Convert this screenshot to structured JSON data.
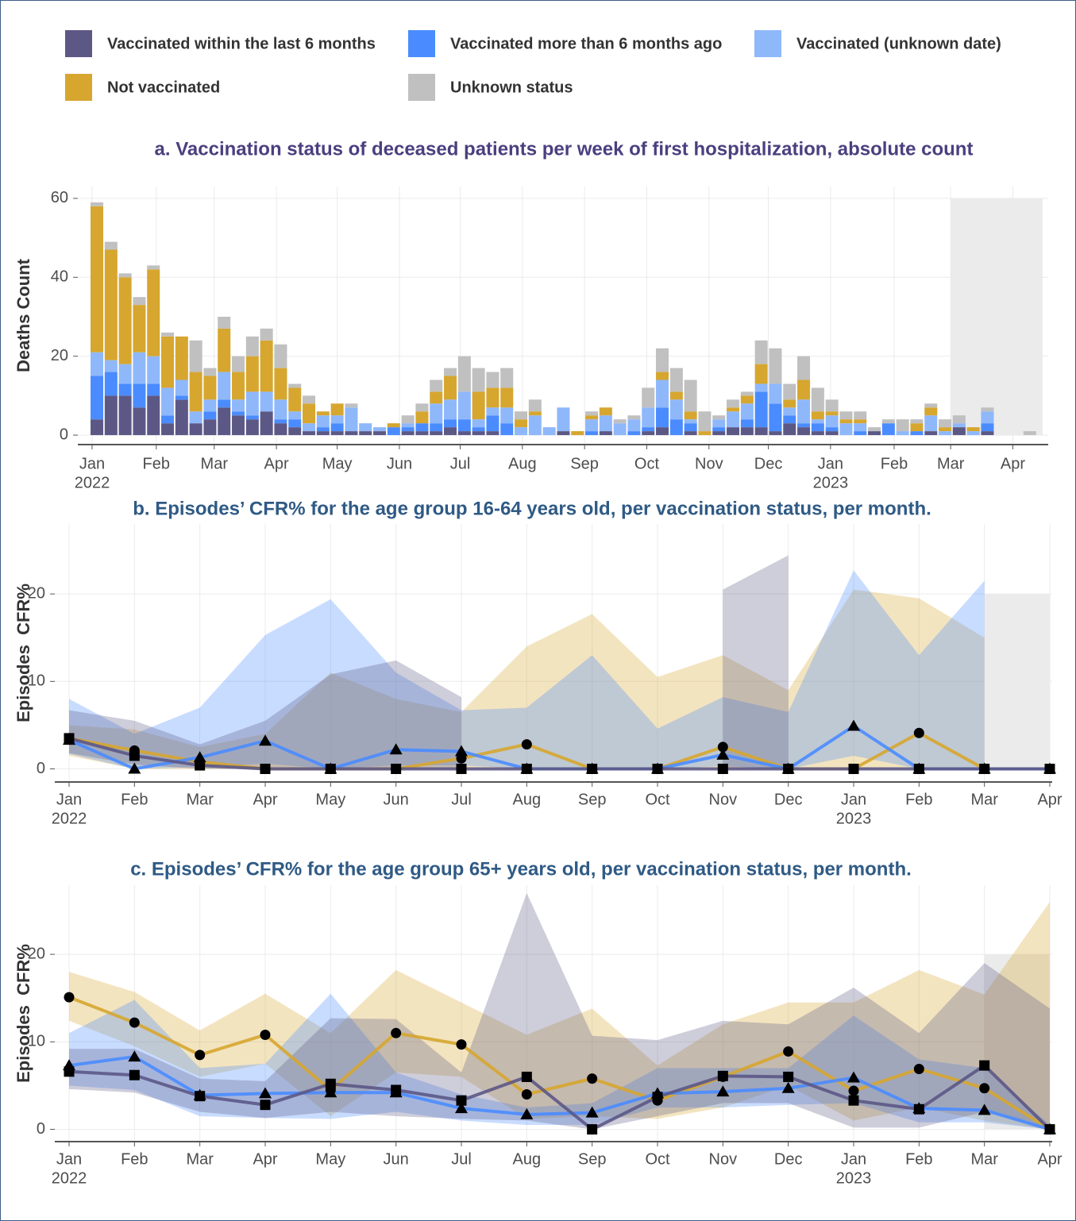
{
  "chart_data": [
    {
      "type": "bar",
      "stacked": true,
      "title": "a. Vaccination status of deceased patients per week of first hospitalization, absolute count",
      "y_label": "Deaths Count",
      "x": [
        0,
        1,
        2,
        3,
        4,
        5,
        6,
        7,
        8,
        9,
        10,
        11,
        12,
        13,
        14,
        15,
        16,
        17,
        18,
        19,
        20,
        21,
        22,
        23,
        24,
        25,
        26,
        27,
        28,
        29,
        30,
        31,
        32,
        33,
        34,
        35,
        36,
        37,
        38,
        39,
        40,
        41,
        42,
        43,
        44,
        45,
        46,
        47,
        48,
        49,
        50,
        51,
        52,
        53,
        54,
        55,
        56,
        57,
        58,
        59,
        60,
        61,
        62,
        63,
        64,
        65,
        66
      ],
      "xlim": [
        -1.35,
        67.3
      ],
      "xticks": [
        {
          "value": -0.34,
          "label": "Jan"
        },
        {
          "value": 4.2,
          "label": "Feb"
        },
        {
          "value": 8.3,
          "label": "Mar"
        },
        {
          "value": 12.7,
          "label": "Apr"
        },
        {
          "value": 17.0,
          "label": "May"
        },
        {
          "value": 21.4,
          "label": "Jun"
        },
        {
          "value": 25.7,
          "label": "Jul"
        },
        {
          "value": 30.1,
          "label": "Aug"
        },
        {
          "value": 34.5,
          "label": "Sep"
        },
        {
          "value": 38.9,
          "label": "Oct"
        },
        {
          "value": 43.3,
          "label": "Nov"
        },
        {
          "value": 47.5,
          "label": "Dec"
        },
        {
          "value": 51.9,
          "label": "Jan"
        },
        {
          "value": 56.4,
          "label": "Feb"
        },
        {
          "value": 60.4,
          "label": "Mar"
        },
        {
          "value": 64.8,
          "label": "Apr"
        }
      ],
      "xtick_sublabels": [
        "2022",
        null,
        null,
        null,
        null,
        null,
        null,
        null,
        null,
        null,
        null,
        null,
        "2023",
        null,
        null,
        null
      ],
      "ylim": [
        -2.4,
        63
      ],
      "yticks": [
        0,
        20,
        40,
        60
      ],
      "grid": true,
      "legend": "top",
      "shaded": {
        "xlim": [
          60.4,
          66.9
        ],
        "ylim": [
          0,
          60
        ]
      },
      "series": [
        {
          "name": "Vaccinated within the last 6 months",
          "color": "#5c5886",
          "values": [
            4,
            10,
            10,
            7,
            10,
            3,
            9,
            3,
            4,
            7,
            5,
            4,
            6,
            3,
            2,
            1,
            1,
            1,
            1,
            1,
            1,
            0,
            1,
            1,
            1,
            2,
            1,
            1,
            1,
            0,
            0,
            0,
            0,
            1,
            0,
            0,
            1,
            0,
            0,
            1,
            2,
            0,
            1,
            0,
            1,
            2,
            2,
            2,
            1,
            3,
            2,
            1,
            1,
            0,
            0,
            1,
            0,
            0,
            0,
            1,
            0,
            2,
            0,
            1,
            0,
            0,
            0
          ]
        },
        {
          "name": "Vaccinated more than 6 months ago",
          "color": "#4a8cff",
          "values": [
            11,
            6,
            3,
            6,
            3,
            2,
            1,
            0,
            2,
            2,
            1,
            1,
            0,
            1,
            2,
            0,
            1,
            2,
            0,
            0,
            0,
            2,
            1,
            2,
            2,
            2,
            3,
            1,
            4,
            3,
            0,
            0,
            0,
            0,
            0,
            1,
            0,
            0,
            1,
            1,
            5,
            4,
            2,
            0,
            1,
            0,
            2,
            9,
            7,
            2,
            1,
            2,
            1,
            0,
            1,
            0,
            3,
            0,
            1,
            0,
            0,
            0,
            0,
            2,
            0,
            0,
            0
          ]
        },
        {
          "name": "Vaccinated (unknown date)",
          "color": "#8fb8fb",
          "values": [
            6,
            3,
            5,
            8,
            7,
            7,
            4,
            3,
            3,
            7,
            3,
            6,
            5,
            5,
            2,
            2,
            3,
            2,
            6,
            2,
            1,
            0,
            1,
            0,
            5,
            5,
            7,
            2,
            2,
            4,
            2,
            5,
            2,
            6,
            0,
            3,
            4,
            3,
            3,
            5,
            7,
            5,
            1,
            0,
            2,
            4,
            4,
            2,
            5,
            2,
            6,
            1,
            3,
            3,
            2,
            0,
            0,
            1,
            0,
            4,
            1,
            1,
            1,
            3,
            0,
            0,
            0
          ]
        },
        {
          "name": "Not vaccinated",
          "color": "#d6a62f",
          "values": [
            37,
            28,
            22,
            12,
            22,
            13,
            11,
            10,
            6,
            11,
            7,
            9,
            13,
            8,
            6,
            5,
            1,
            3,
            0,
            0,
            0,
            1,
            0,
            3,
            3,
            6,
            0,
            7,
            5,
            5,
            2,
            1,
            0,
            0,
            1,
            1,
            2,
            0,
            0,
            0,
            2,
            2,
            2,
            1,
            0,
            1,
            2,
            5,
            0,
            2,
            5,
            2,
            1,
            1,
            1,
            0,
            0,
            0,
            2,
            2,
            1,
            0,
            1,
            0,
            0,
            0,
            0
          ]
        },
        {
          "name": "Unknown status",
          "color": "#c0c0c0",
          "values": [
            1,
            2,
            1,
            2,
            1,
            1,
            0,
            8,
            2,
            3,
            4,
            5,
            3,
            6,
            1,
            2,
            0,
            0,
            1,
            0,
            0,
            0,
            2,
            2,
            3,
            2,
            9,
            6,
            4,
            5,
            2,
            3,
            0,
            0,
            0,
            1,
            0,
            1,
            1,
            5,
            6,
            6,
            8,
            5,
            1,
            2,
            1,
            6,
            9,
            4,
            6,
            6,
            3,
            2,
            2,
            1,
            1,
            3,
            1,
            1,
            2,
            2,
            0,
            1,
            0,
            0,
            1
          ]
        }
      ]
    },
    {
      "type": "line",
      "title": "b. Episodes’ CFR% for the age group 16-64 years old, per vaccination status, per month.",
      "y_label": "Episodes  CFR%",
      "categories": [
        "Jan",
        "Feb",
        "Mar",
        "Apr",
        "May",
        "Jun",
        "Jul",
        "Aug",
        "Sep",
        "Oct",
        "Nov",
        "Dec",
        "Jan",
        "Feb",
        "Mar",
        "Apr"
      ],
      "category_years": [
        "2022",
        null,
        null,
        null,
        null,
        null,
        null,
        null,
        null,
        null,
        null,
        null,
        "2023",
        null,
        null,
        null
      ],
      "ylim": [
        -1.5,
        28
      ],
      "yticks": [
        0,
        10,
        20
      ],
      "grid": true,
      "shaded": {
        "xlim": [
          14,
          15
        ],
        "ylim": [
          0,
          20
        ]
      },
      "series": [
        {
          "color": "#d6a62f",
          "marker": "circle",
          "values": [
            3.5,
            2.1,
            0.8,
            0,
            0,
            0,
            1.2,
            2.8,
            0,
            0,
            2.5,
            0,
            0,
            4.1,
            0,
            0
          ],
          "lower": [
            1.5,
            0,
            0,
            0,
            0,
            0,
            0,
            0,
            0,
            0,
            0,
            0,
            0,
            0,
            0,
            null
          ],
          "upper": [
            5,
            4.5,
            2.5,
            4,
            11,
            8,
            6.5,
            14,
            17.7,
            10.5,
            13,
            9,
            20.5,
            19.5,
            15,
            null
          ]
        },
        {
          "color": "#4a8cff",
          "marker": "triangle",
          "values": [
            3.3,
            0,
            1.3,
            3.2,
            0,
            2.2,
            2.0,
            0,
            0,
            0,
            1.6,
            0,
            4.9,
            0,
            0,
            0
          ],
          "lower": [
            1.7,
            0,
            0.2,
            0.6,
            0,
            0.4,
            0.4,
            0,
            0,
            0,
            0.3,
            0,
            1.5,
            0,
            0,
            null
          ],
          "upper": [
            8,
            4,
            7,
            15.3,
            19.4,
            11,
            6.7,
            7,
            13,
            4.6,
            8.2,
            6.5,
            22.7,
            13,
            21.5,
            null
          ]
        },
        {
          "color": "#5c5886",
          "marker": "square",
          "values": [
            3.5,
            1.5,
            0.4,
            0,
            0,
            0,
            0,
            0,
            0,
            0,
            0,
            0,
            0,
            0,
            0,
            0
          ],
          "lower": [
            1.8,
            0.5,
            0,
            0,
            0,
            0,
            0,
            null,
            null,
            null,
            0,
            0,
            null,
            null,
            null,
            null
          ],
          "upper": [
            6.7,
            5.5,
            2.8,
            5.5,
            10.8,
            12.4,
            8.2,
            null,
            null,
            null,
            20.5,
            24.4,
            null,
            null,
            null,
            null
          ]
        }
      ]
    },
    {
      "type": "line",
      "title": "c. Episodes’ CFR% for the age group 65+ years old, per vaccination status, per month.",
      "y_label": "Episodes  CFR%",
      "categories": [
        "Jan",
        "Feb",
        "Mar",
        "Apr",
        "May",
        "Jun",
        "Jul",
        "Aug",
        "Sep",
        "Oct",
        "Nov",
        "Dec",
        "Jan",
        "Feb",
        "Mar",
        "Apr"
      ],
      "category_years": [
        "2022",
        null,
        null,
        null,
        null,
        null,
        null,
        null,
        null,
        null,
        null,
        null,
        "2023",
        null,
        null,
        null
      ],
      "ylim": [
        -1.4,
        27.9
      ],
      "yticks": [
        0,
        10,
        20
      ],
      "grid": true,
      "shaded": {
        "xlim": [
          14,
          15
        ],
        "ylim": [
          0,
          20
        ]
      },
      "series": [
        {
          "color": "#d6a62f",
          "marker": "circle",
          "values": [
            15.1,
            12.2,
            8.5,
            10.8,
            4.5,
            11.0,
            9.7,
            4.0,
            5.8,
            3.3,
            6.0,
            8.9,
            4.4,
            6.9,
            4.7,
            0
          ],
          "lower": [
            12.4,
            9.5,
            6,
            7.5,
            1.5,
            6.5,
            6,
            1.2,
            1.5,
            1.2,
            2.5,
            5,
            1,
            2.5,
            1,
            0
          ],
          "upper": [
            18,
            15.7,
            11.3,
            15.5,
            11,
            18.2,
            14.5,
            10.8,
            13.8,
            7.3,
            12,
            14.5,
            14.5,
            18.2,
            15.4,
            26
          ]
        },
        {
          "color": "#4a8cff",
          "marker": "triangle",
          "values": [
            7.3,
            8.3,
            3.9,
            4.1,
            4.2,
            4.2,
            2.4,
            1.7,
            1.9,
            4.1,
            4.3,
            4.7,
            5.9,
            2.4,
            2.2,
            0
          ],
          "lower": [
            5,
            4.5,
            1.5,
            1.3,
            1.2,
            2,
            1,
            0.5,
            0.5,
            2.5,
            2.5,
            2.8,
            3,
            0.8,
            0.8,
            0
          ],
          "upper": [
            11,
            14.8,
            7,
            7.5,
            15.5,
            6.5,
            4,
            2.5,
            3,
            7,
            7,
            7,
            13,
            8,
            7,
            0.5
          ]
        },
        {
          "color": "#5c5886",
          "marker": "square",
          "values": [
            6.6,
            6.2,
            3.8,
            2.8,
            5.2,
            4.5,
            3.3,
            6.0,
            0,
            3.7,
            6.1,
            6.0,
            3.3,
            2.3,
            7.3,
            0
          ],
          "lower": [
            4.6,
            4.2,
            2,
            1.3,
            2,
            1.5,
            1.2,
            1,
            0,
            1.5,
            3,
            3,
            0.2,
            0.2,
            2,
            0
          ],
          "upper": [
            9.2,
            9.2,
            5.8,
            5.5,
            12.7,
            12.6,
            6.5,
            27,
            10.7,
            10.2,
            12.4,
            12,
            16.2,
            11,
            19,
            13.8
          ]
        }
      ]
    }
  ]
}
